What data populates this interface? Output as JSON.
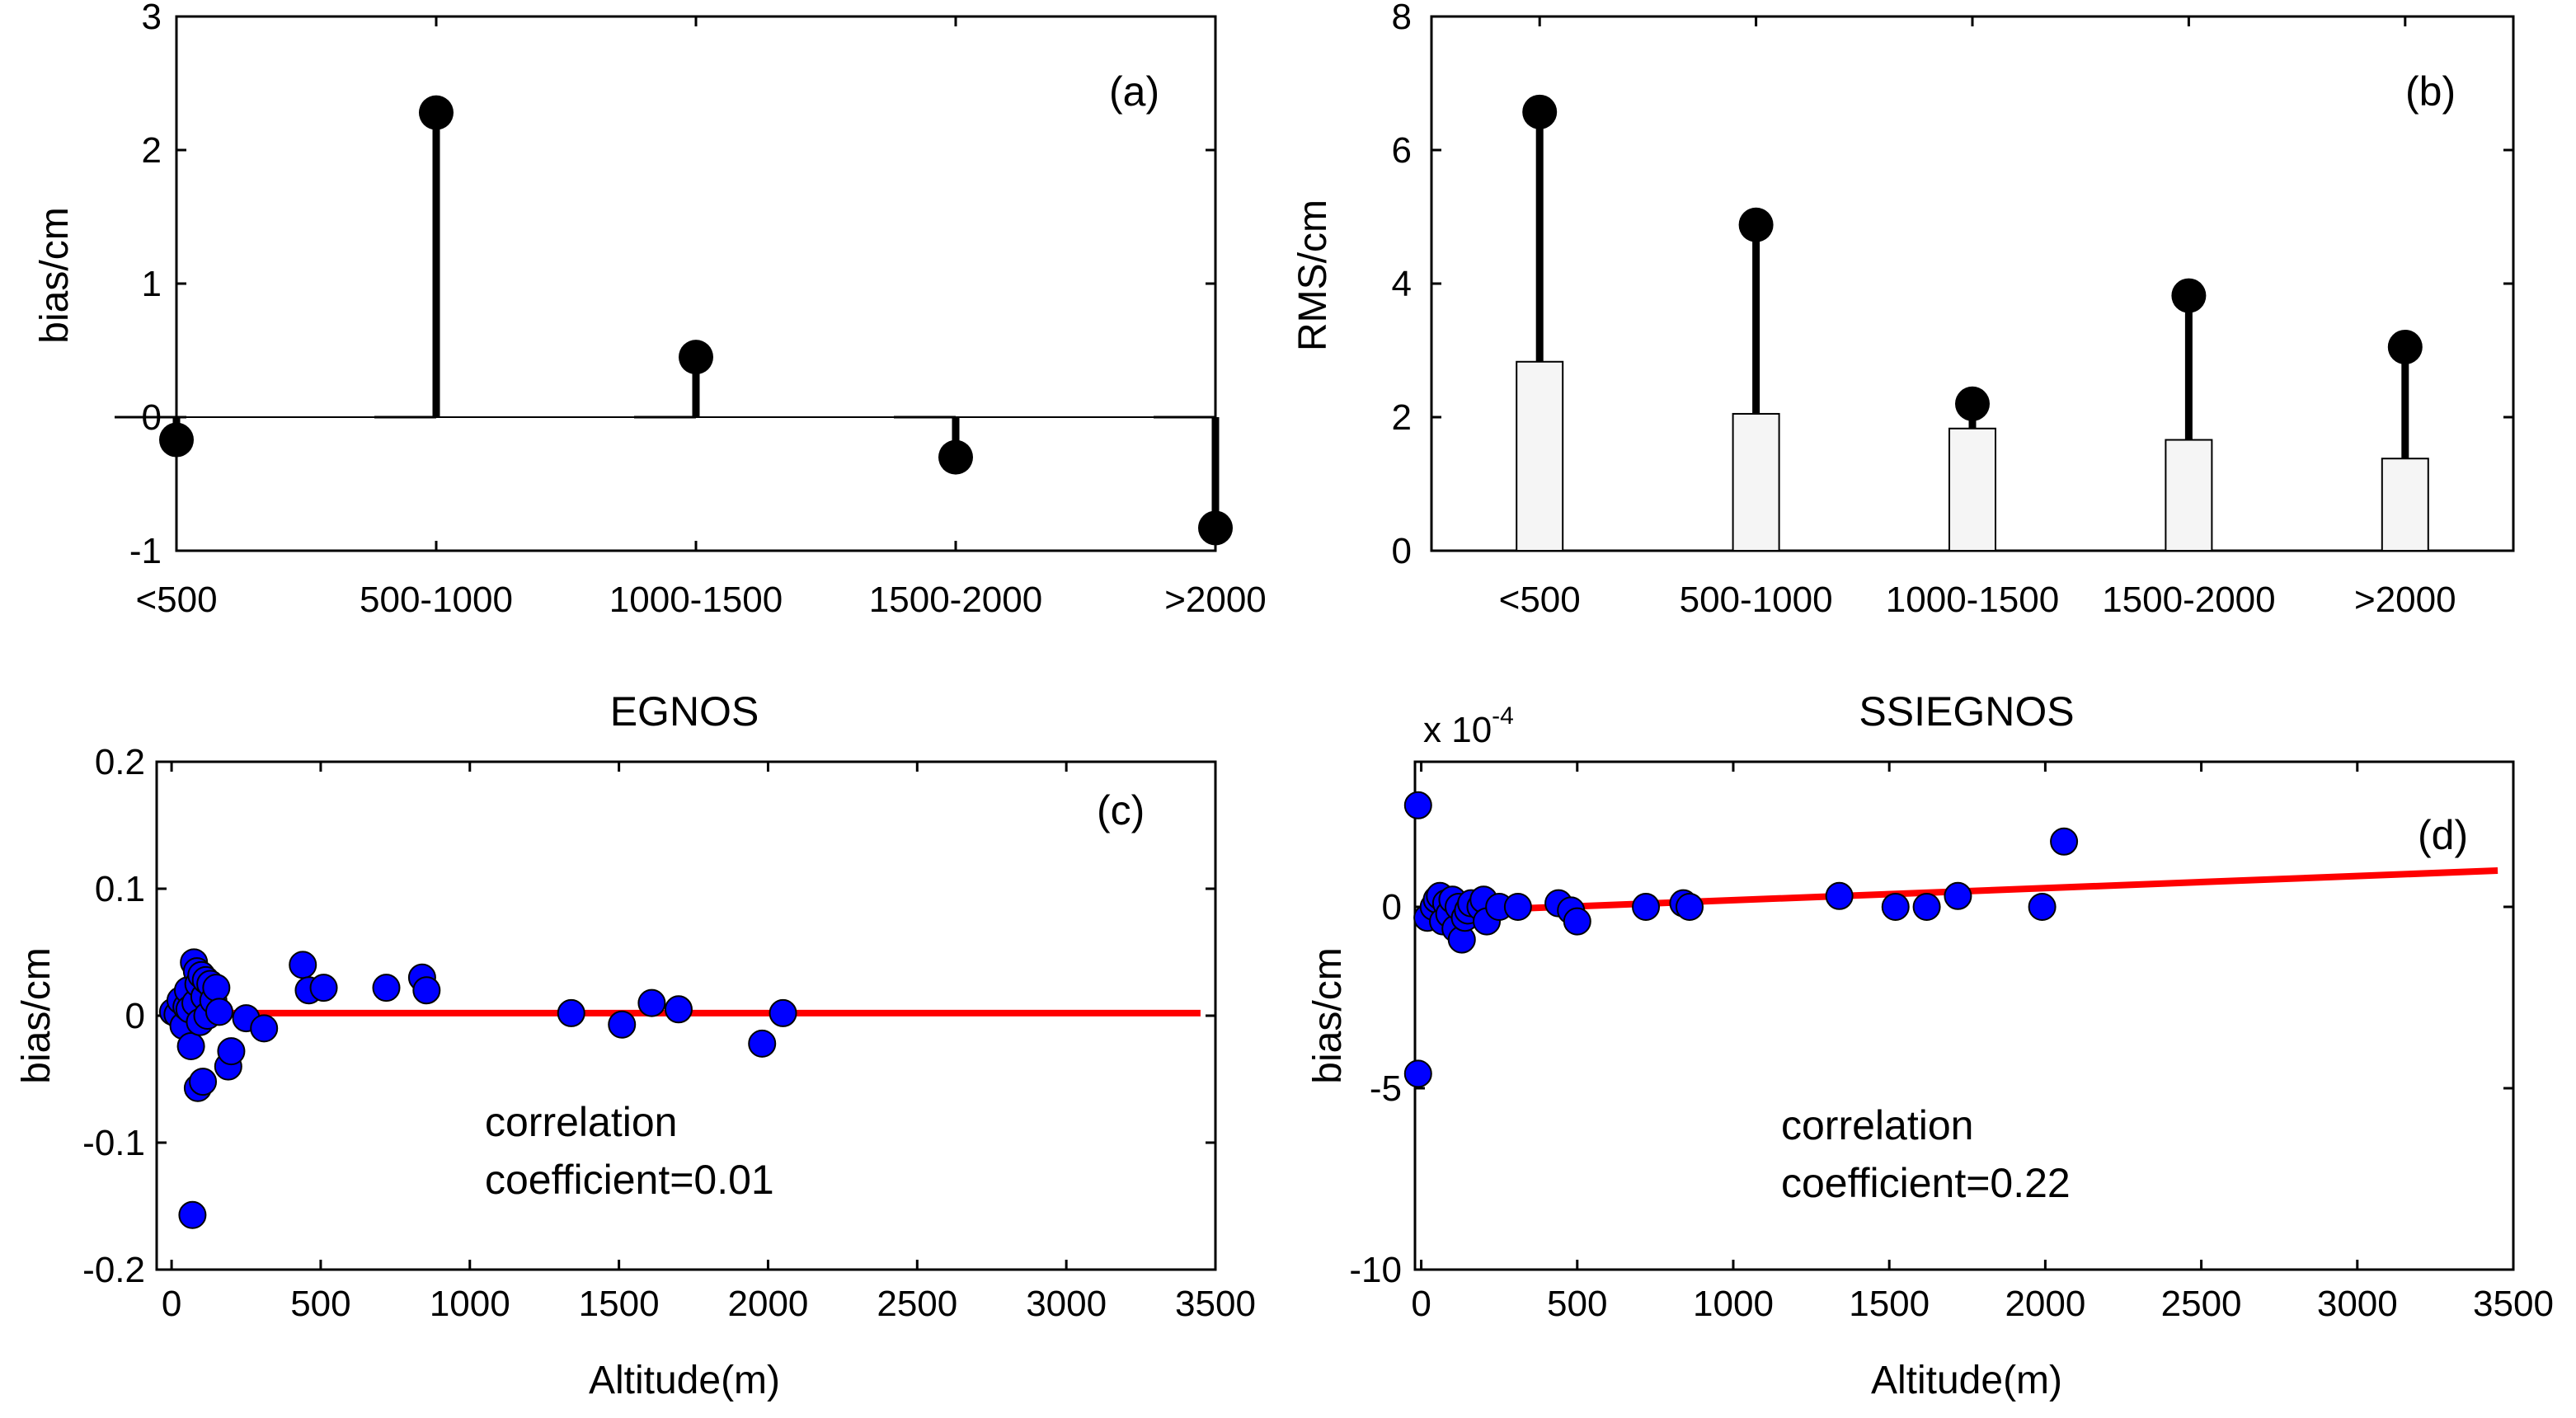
{
  "chart_data": [
    {
      "type": "stem",
      "panel_label": "(a)",
      "ylabel": "bias/cm",
      "categories": [
        "<500",
        "500-1000",
        "1000-1500",
        "1500-2000",
        ">2000"
      ],
      "values": [
        -0.17,
        2.28,
        0.45,
        -0.3,
        -0.83
      ],
      "ylim": [
        -1,
        3
      ],
      "yticks": [
        -1,
        0,
        1,
        2,
        3
      ]
    },
    {
      "type": "stem+bar",
      "panel_label": "(b)",
      "ylabel": "RMS/cm",
      "categories": [
        "<500",
        "500-1000",
        "1000-1500",
        "1500-2000",
        ">2000"
      ],
      "stem_values": [
        6.57,
        4.88,
        2.2,
        3.82,
        3.05
      ],
      "bar_values": [
        2.83,
        2.05,
        1.83,
        1.66,
        1.38
      ],
      "ylim": [
        0,
        8
      ],
      "yticks": [
        0,
        2,
        4,
        6,
        8
      ]
    },
    {
      "type": "scatter",
      "title": "EGNOS",
      "panel_label": "(c)",
      "xlabel": "Altitude(m)",
      "ylabel": "bias/cm",
      "xlim": [
        -50,
        3500
      ],
      "ylim": [
        -0.2,
        0.2
      ],
      "xticks": [
        0,
        500,
        1000,
        1500,
        2000,
        2500,
        3000,
        3500
      ],
      "yticks": [
        -0.2,
        -0.1,
        0,
        0.1,
        0.2
      ],
      "annotation": [
        "correlation",
        "coefficient=0.01"
      ],
      "fit_line": {
        "x": [
          0,
          3450
        ],
        "y": [
          0.002,
          0.002
        ]
      },
      "points": [
        {
          "x": 5,
          "y": 0.003
        },
        {
          "x": 20,
          "y": 0.001
        },
        {
          "x": 30,
          "y": 0.012
        },
        {
          "x": 40,
          "y": -0.008
        },
        {
          "x": 50,
          "y": 0.007
        },
        {
          "x": 55,
          "y": 0.02
        },
        {
          "x": 60,
          "y": 0.005
        },
        {
          "x": 65,
          "y": -0.024
        },
        {
          "x": 70,
          "y": -0.157
        },
        {
          "x": 75,
          "y": 0.042
        },
        {
          "x": 80,
          "y": 0.01
        },
        {
          "x": 85,
          "y": 0.035
        },
        {
          "x": 88,
          "y": -0.057
        },
        {
          "x": 90,
          "y": 0.025
        },
        {
          "x": 95,
          "y": -0.005
        },
        {
          "x": 100,
          "y": 0.032
        },
        {
          "x": 105,
          "y": -0.052
        },
        {
          "x": 110,
          "y": 0.015
        },
        {
          "x": 115,
          "y": 0.028
        },
        {
          "x": 120,
          "y": 0.0
        },
        {
          "x": 130,
          "y": 0.025
        },
        {
          "x": 140,
          "y": 0.012
        },
        {
          "x": 150,
          "y": 0.022
        },
        {
          "x": 160,
          "y": 0.003
        },
        {
          "x": 190,
          "y": -0.04
        },
        {
          "x": 200,
          "y": -0.028
        },
        {
          "x": 250,
          "y": -0.002
        },
        {
          "x": 310,
          "y": -0.01
        },
        {
          "x": 440,
          "y": 0.04
        },
        {
          "x": 460,
          "y": 0.02
        },
        {
          "x": 510,
          "y": 0.022
        },
        {
          "x": 720,
          "y": 0.022
        },
        {
          "x": 840,
          "y": 0.03
        },
        {
          "x": 855,
          "y": 0.02
        },
        {
          "x": 1340,
          "y": 0.002
        },
        {
          "x": 1510,
          "y": -0.007
        },
        {
          "x": 1610,
          "y": 0.01
        },
        {
          "x": 1700,
          "y": 0.005
        },
        {
          "x": 1980,
          "y": -0.022
        },
        {
          "x": 2050,
          "y": 0.002
        }
      ]
    },
    {
      "type": "scatter",
      "title": "SSIEGNOS",
      "panel_label": "(d)",
      "xlabel": "Altitude(m)",
      "ylabel": "bias/cm",
      "scale_label": "x 10",
      "scale_exponent": "-4",
      "xlim": [
        -20,
        3500
      ],
      "ylim": [
        -10,
        4
      ],
      "xticks": [
        0,
        500,
        1000,
        1500,
        2000,
        2500,
        3000,
        3500
      ],
      "yticks": [
        -10,
        -5,
        0
      ],
      "annotation": [
        "correlation",
        "coefficient=0.22"
      ],
      "fit_line": {
        "x": [
          0,
          3450
        ],
        "y": [
          -0.15,
          1.0
        ]
      },
      "points": [
        {
          "x": -10,
          "y": 2.8
        },
        {
          "x": -10,
          "y": -4.6
        },
        {
          "x": 20,
          "y": -0.3
        },
        {
          "x": 40,
          "y": 0.0
        },
        {
          "x": 50,
          "y": 0.2
        },
        {
          "x": 60,
          "y": 0.3
        },
        {
          "x": 70,
          "y": -0.4
        },
        {
          "x": 80,
          "y": 0.1
        },
        {
          "x": 90,
          "y": -0.2
        },
        {
          "x": 100,
          "y": 0.2
        },
        {
          "x": 110,
          "y": -0.6
        },
        {
          "x": 120,
          "y": 0.0
        },
        {
          "x": 130,
          "y": -0.9
        },
        {
          "x": 140,
          "y": -0.3
        },
        {
          "x": 150,
          "y": -0.1
        },
        {
          "x": 160,
          "y": 0.1
        },
        {
          "x": 190,
          "y": 0.0
        },
        {
          "x": 200,
          "y": 0.2
        },
        {
          "x": 210,
          "y": -0.4
        },
        {
          "x": 250,
          "y": 0.0
        },
        {
          "x": 310,
          "y": 0.0
        },
        {
          "x": 440,
          "y": 0.1
        },
        {
          "x": 480,
          "y": -0.1
        },
        {
          "x": 500,
          "y": -0.4
        },
        {
          "x": 720,
          "y": 0.0
        },
        {
          "x": 840,
          "y": 0.1
        },
        {
          "x": 860,
          "y": 0.0
        },
        {
          "x": 1340,
          "y": 0.3
        },
        {
          "x": 1520,
          "y": 0.0
        },
        {
          "x": 1620,
          "y": 0.0
        },
        {
          "x": 1720,
          "y": 0.3
        },
        {
          "x": 1990,
          "y": 0.0
        },
        {
          "x": 2060,
          "y": 1.8
        }
      ]
    }
  ]
}
